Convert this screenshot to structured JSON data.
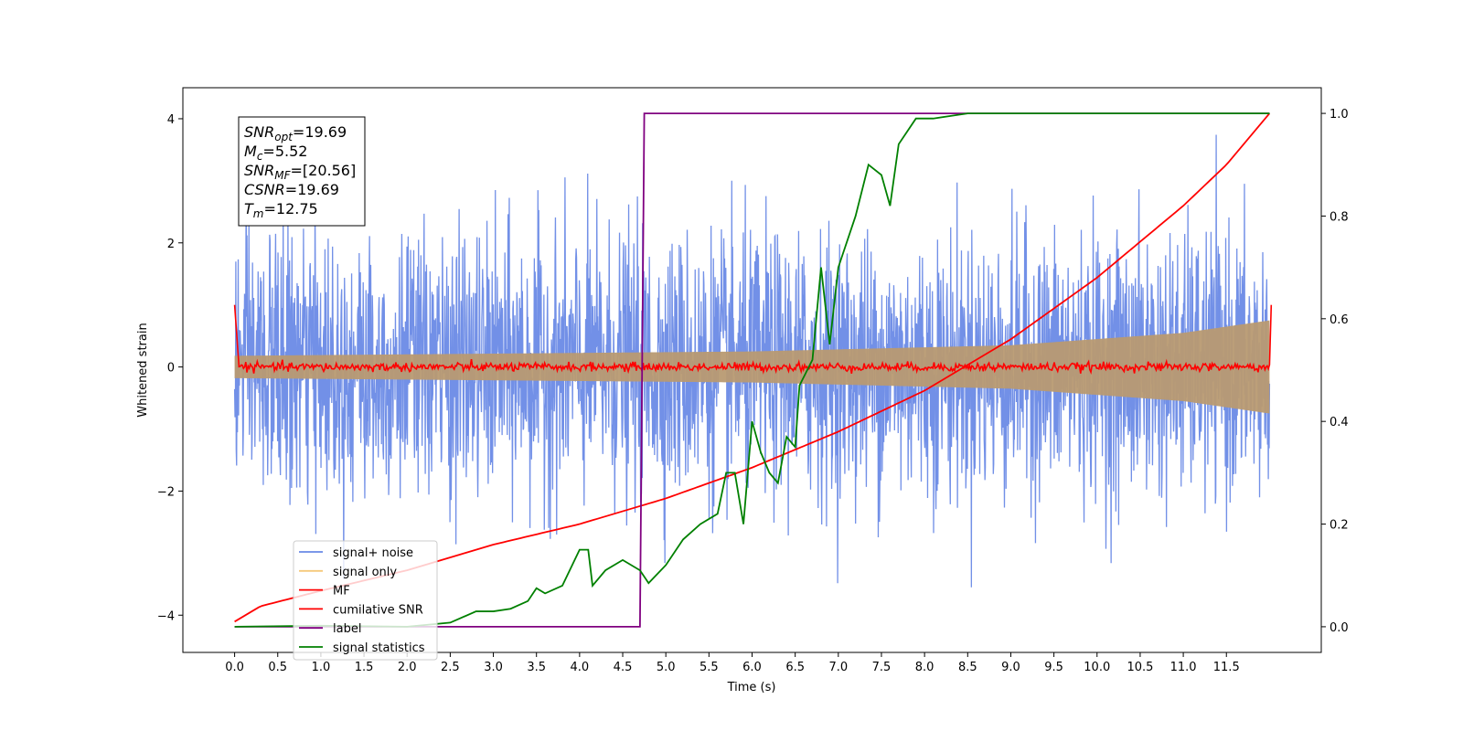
{
  "chart_data": {
    "type": "line",
    "xlabel": "Time (s)",
    "ylabel": "Whitened strain",
    "xlim": [
      -0.6,
      12.6
    ],
    "ylim": [
      -4.6,
      4.5
    ],
    "y2lim": [
      -0.05,
      1.05
    ],
    "xticks": [
      "0.0",
      "0.5",
      "1.0",
      "1.5",
      "2.0",
      "2.5",
      "3.0",
      "3.5",
      "4.0",
      "4.5",
      "5.0",
      "5.5",
      "6.0",
      "6.5",
      "7.0",
      "7.5",
      "8.0",
      "8.5",
      "9.0",
      "9.5",
      "10.0",
      "10.5",
      "11.0",
      "11.5"
    ],
    "yticks": [
      "-4",
      "-2",
      "0",
      "2",
      "4"
    ],
    "y2ticks": [
      "0.0",
      "0.2",
      "0.4",
      "0.6",
      "0.8",
      "1.0"
    ],
    "legend_position": "lower-left",
    "info_box": {
      "lines": [
        {
          "name": "SNR",
          "sub": "opt",
          "value": "=19.69"
        },
        {
          "name": "M",
          "sub": "c",
          "value": "=5.52"
        },
        {
          "name": "SNR",
          "sub": "MF",
          "value": "=[20.56]"
        },
        {
          "name": "CSNR",
          "sub": "",
          "value": "=19.69"
        },
        {
          "name": "T",
          "sub": "m",
          "value": "=12.75"
        }
      ]
    },
    "series": [
      {
        "name": "signal+ noise",
        "color": "#6a8ae6",
        "kind": "noise",
        "axis": "left",
        "x_range": [
          0,
          12.0
        ],
        "amplitude": "approximately 1σ, peaks to about ±3.5"
      },
      {
        "name": "signal only",
        "color": "#f5c87a",
        "kind": "chirp-envelope",
        "axis": "left",
        "envelope": [
          [
            0,
            0.18
          ],
          [
            6.0,
            0.25
          ],
          [
            9.0,
            0.35
          ],
          [
            11.0,
            0.55
          ],
          [
            12.0,
            0.75
          ]
        ]
      },
      {
        "name": "MF",
        "color": "#ff0000",
        "kind": "mf",
        "axis": "left",
        "points": [
          [
            0,
            1.0
          ],
          [
            0.05,
            0.0
          ],
          [
            12.0,
            0.0
          ],
          [
            12.02,
            1.0
          ]
        ]
      },
      {
        "name": "cumilative SNR",
        "color": "#ff0000",
        "axis": "right",
        "points": [
          [
            0,
            0.01
          ],
          [
            0.3,
            0.04
          ],
          [
            1.0,
            0.07
          ],
          [
            2.0,
            0.11
          ],
          [
            3.0,
            0.16
          ],
          [
            4.0,
            0.2
          ],
          [
            5.0,
            0.25
          ],
          [
            6.0,
            0.31
          ],
          [
            7.0,
            0.38
          ],
          [
            8.0,
            0.46
          ],
          [
            9.0,
            0.56
          ],
          [
            10.0,
            0.68
          ],
          [
            11.0,
            0.82
          ],
          [
            11.5,
            0.9
          ],
          [
            12.0,
            1.0
          ]
        ]
      },
      {
        "name": "label",
        "color": "#800080",
        "axis": "right",
        "points": [
          [
            0,
            0
          ],
          [
            4.7,
            0
          ],
          [
            4.75,
            1.0
          ],
          [
            12.0,
            1.0
          ]
        ]
      },
      {
        "name": "signal statistics",
        "color": "#008000",
        "axis": "right",
        "points": [
          [
            0,
            0.0
          ],
          [
            1.0,
            0.002
          ],
          [
            2.0,
            0.0
          ],
          [
            2.5,
            0.008
          ],
          [
            2.8,
            0.03
          ],
          [
            3.0,
            0.03
          ],
          [
            3.2,
            0.035
          ],
          [
            3.4,
            0.05
          ],
          [
            3.5,
            0.075
          ],
          [
            3.6,
            0.065
          ],
          [
            3.8,
            0.08
          ],
          [
            4.0,
            0.15
          ],
          [
            4.1,
            0.15
          ],
          [
            4.15,
            0.08
          ],
          [
            4.3,
            0.11
          ],
          [
            4.5,
            0.13
          ],
          [
            4.7,
            0.11
          ],
          [
            4.8,
            0.085
          ],
          [
            5.0,
            0.12
          ],
          [
            5.2,
            0.17
          ],
          [
            5.4,
            0.2
          ],
          [
            5.6,
            0.22
          ],
          [
            5.7,
            0.3
          ],
          [
            5.8,
            0.3
          ],
          [
            5.9,
            0.2
          ],
          [
            6.0,
            0.4
          ],
          [
            6.1,
            0.34
          ],
          [
            6.2,
            0.3
          ],
          [
            6.3,
            0.28
          ],
          [
            6.4,
            0.37
          ],
          [
            6.5,
            0.35
          ],
          [
            6.55,
            0.47
          ],
          [
            6.7,
            0.52
          ],
          [
            6.8,
            0.7
          ],
          [
            6.9,
            0.55
          ],
          [
            7.0,
            0.7
          ],
          [
            7.2,
            0.8
          ],
          [
            7.35,
            0.9
          ],
          [
            7.5,
            0.88
          ],
          [
            7.6,
            0.82
          ],
          [
            7.7,
            0.94
          ],
          [
            7.9,
            0.99
          ],
          [
            8.1,
            0.99
          ],
          [
            8.5,
            1.0
          ],
          [
            12.0,
            1.0
          ]
        ]
      }
    ]
  }
}
